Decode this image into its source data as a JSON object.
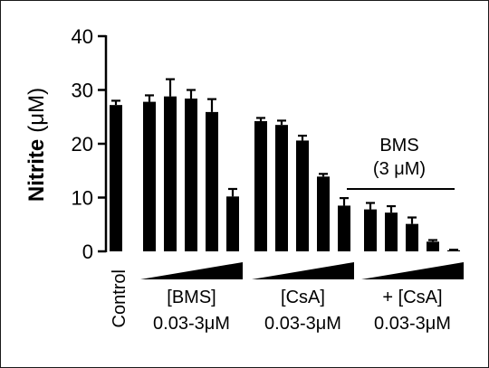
{
  "chart_data": {
    "type": "bar",
    "ylabel_bold": "Nitrite",
    "ylabel_unit": "(μM)",
    "ylim": [
      0,
      40
    ],
    "yticks": [
      "0",
      "10",
      "20",
      "30",
      "40"
    ],
    "control": {
      "label": "Control",
      "value": 27.2,
      "error": 0.8
    },
    "groups": [
      {
        "name": "BMS",
        "line1": "[BMS]",
        "line2": "0.03-3μM",
        "values": [
          27.8,
          28.8,
          28.4,
          25.9,
          10.2
        ],
        "errors": [
          1.2,
          3.2,
          1.6,
          2.4,
          1.4
        ]
      },
      {
        "name": "CsA",
        "line1": "[CsA]",
        "line2": "0.03-3μM",
        "values": [
          24.2,
          23.5,
          20.6,
          13.9,
          8.5
        ],
        "errors": [
          0.6,
          0.8,
          0.9,
          0.5,
          1.4
        ]
      },
      {
        "name": "BMS + CsA",
        "line1": "+ [CsA]",
        "line2": "0.03-3μM",
        "values": [
          7.8,
          7.2,
          5.1,
          1.8,
          0.2
        ],
        "errors": [
          1.2,
          1.2,
          1.2,
          0.3,
          0.1
        ]
      }
    ],
    "annotation": {
      "line1": "BMS",
      "line2": "(3 μM)"
    }
  },
  "colors": {
    "bar": "#000000",
    "axis": "#000000",
    "frame": "#1a1a1a"
  }
}
